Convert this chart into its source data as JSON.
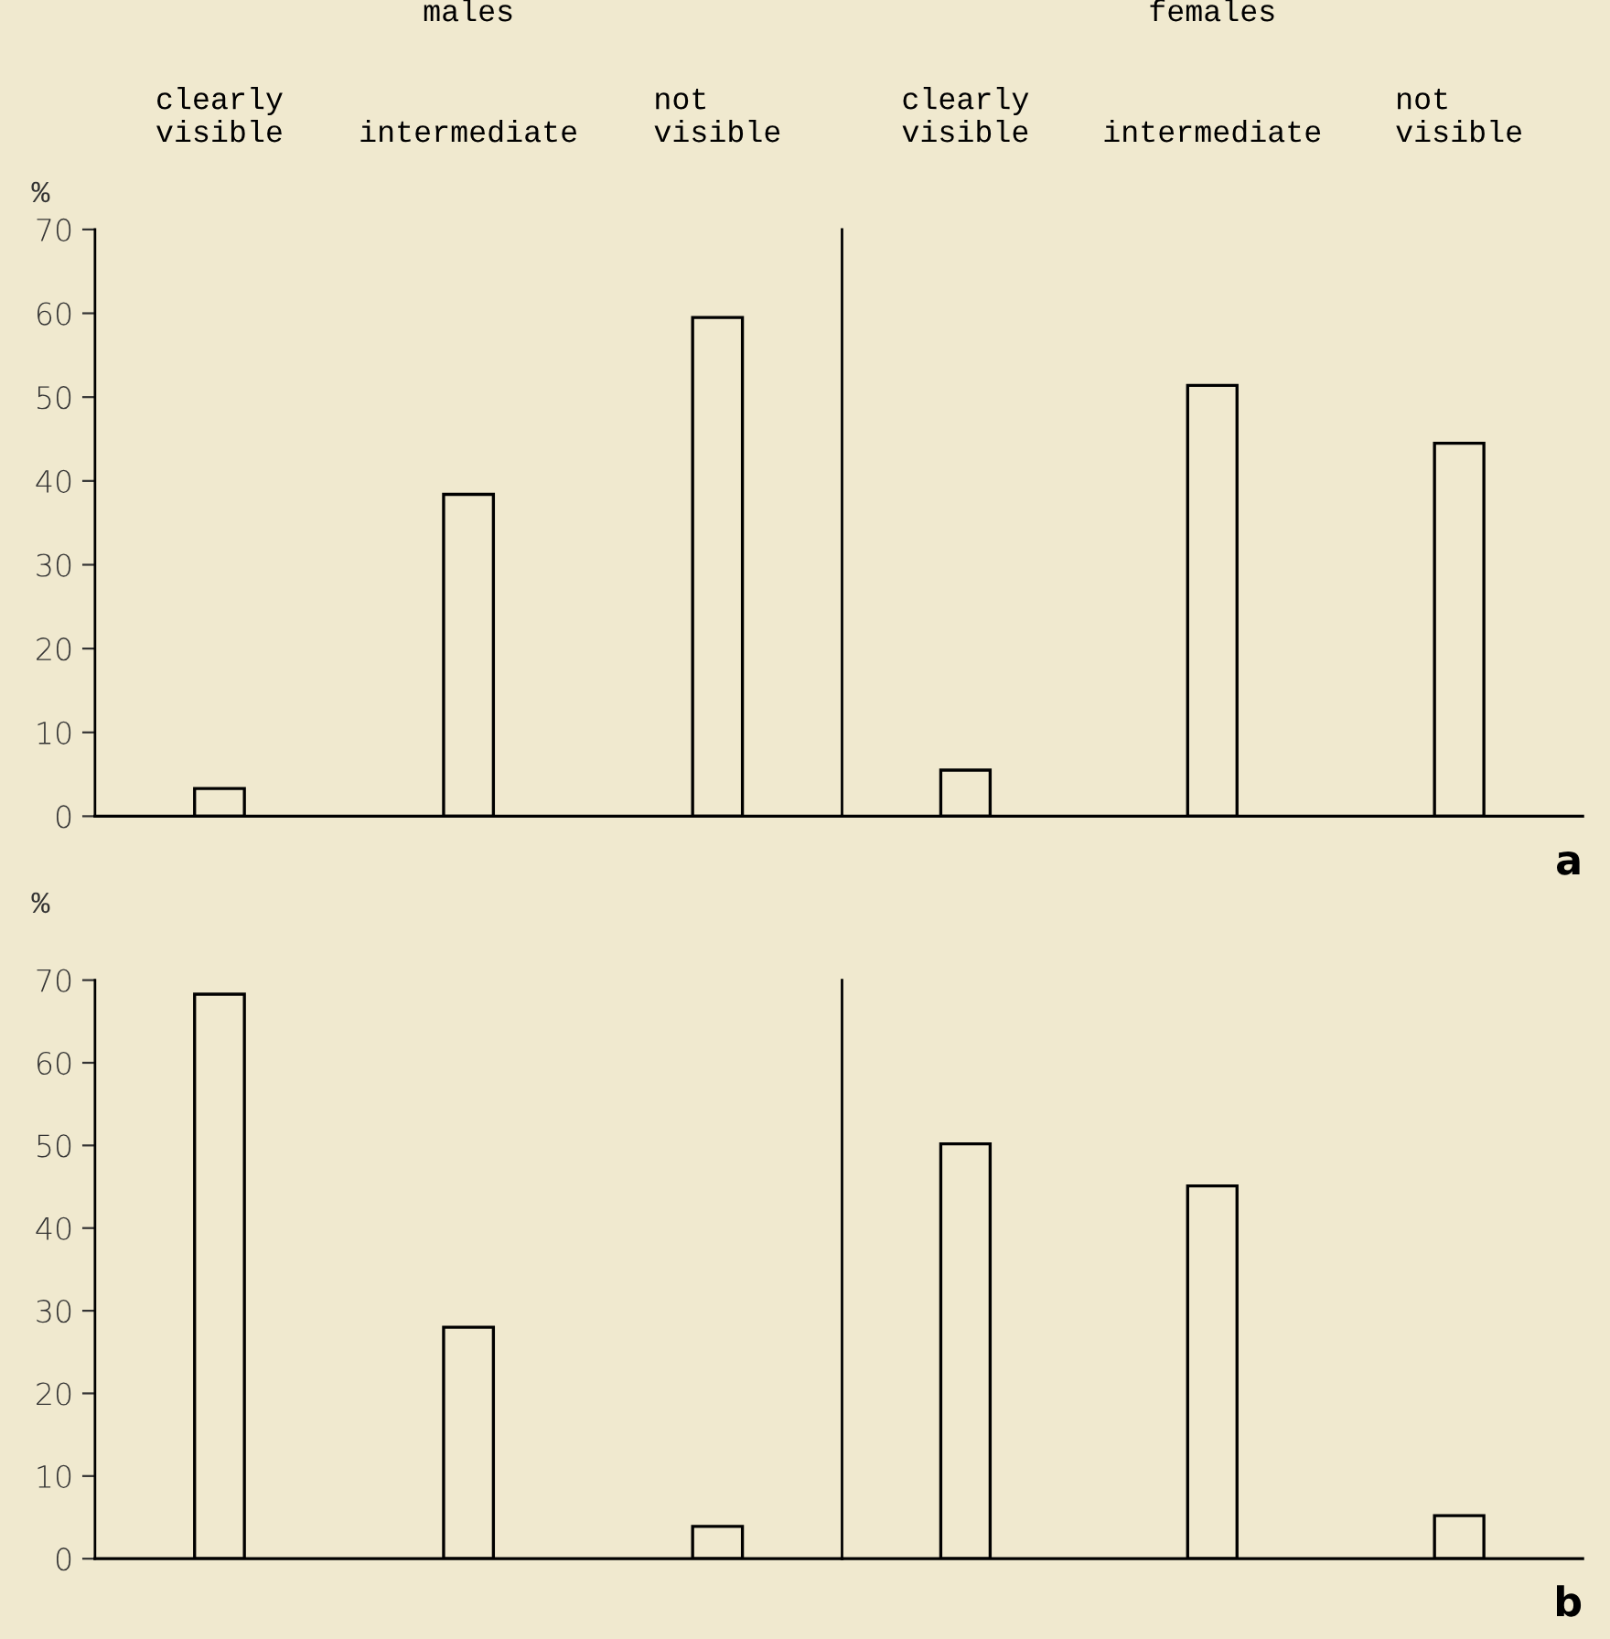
{
  "chart_data": [
    {
      "type": "bar",
      "title": "males",
      "ylabel": "%",
      "categories": [
        "clearly\nvisible",
        "intermediate",
        "not\nvisible"
      ],
      "values": [
        3.3,
        38.4,
        59.5
      ],
      "color": "#000000",
      "ylim": [
        0,
        70
      ],
      "yticks": [
        0,
        10,
        20,
        30,
        40,
        50,
        60,
        70
      ],
      "tick_labels": "xy",
      "grid": false,
      "legend": false
    },
    {
      "type": "bar",
      "title": "females",
      "categories": [
        "clearly\nvisible",
        "intermediate",
        "not\nvisible"
      ],
      "values": [
        5.5,
        51.4,
        44.5
      ],
      "color": "#000000",
      "ylim": [
        0,
        70
      ],
      "tick_labels": "x",
      "annotations": [
        "a"
      ],
      "grid": false,
      "legend": false
    },
    {
      "type": "bar",
      "ylabel": "%",
      "categories": [
        null,
        null,
        null
      ],
      "values": [
        68.3,
        28.0,
        3.9
      ],
      "color": "#000000",
      "ylim": [
        0,
        70
      ],
      "yticks": [
        0,
        10,
        20,
        30,
        40,
        50,
        60,
        70
      ],
      "tick_labels": "y",
      "grid": false,
      "legend": false
    },
    {
      "type": "bar",
      "categories": [
        null,
        null,
        null
      ],
      "values": [
        50.2,
        45.1,
        5.2
      ],
      "color": "#000000",
      "ylim": [
        0,
        70
      ],
      "tick_labels": false,
      "annotations": [
        "b"
      ],
      "grid": false,
      "legend": false
    }
  ]
}
